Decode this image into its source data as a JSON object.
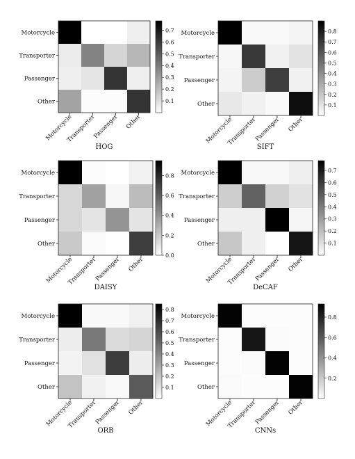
{
  "chart_data": [
    {
      "type": "heatmap",
      "title": "HOG",
      "rows": [
        "Motorcycle",
        "Transporter",
        "Passenger",
        "Other"
      ],
      "cols": [
        "Motorcycle",
        "Transporter",
        "Passenger",
        "Other"
      ],
      "values": [
        [
          0.78,
          0.0,
          0.0,
          0.05
        ],
        [
          0.06,
          0.38,
          0.13,
          0.22
        ],
        [
          0.05,
          0.08,
          0.62,
          0.05
        ],
        [
          0.28,
          0.01,
          0.01,
          0.62
        ]
      ],
      "colorbar_ticks": [
        0.1,
        0.2,
        0.3,
        0.4,
        0.5,
        0.6,
        0.7
      ],
      "vmin": 0.0,
      "vmax": 0.78
    },
    {
      "type": "heatmap",
      "title": "SIFT",
      "rows": [
        "Motorcycle",
        "Transporter",
        "Passenger",
        "Other"
      ],
      "cols": [
        "Motorcycle",
        "Transporter",
        "Passenger",
        "Other"
      ],
      "values": [
        [
          0.9,
          0.02,
          0.02,
          0.04
        ],
        [
          0.03,
          0.7,
          0.05,
          0.1
        ],
        [
          0.04,
          0.18,
          0.68,
          0.05
        ],
        [
          0.08,
          0.05,
          0.02,
          0.85
        ]
      ],
      "colorbar_ticks": [
        0.1,
        0.2,
        0.3,
        0.4,
        0.5,
        0.6,
        0.7,
        0.8
      ],
      "vmin": 0.0,
      "vmax": 0.9
    },
    {
      "type": "heatmap",
      "title": "DAISY",
      "rows": [
        "Motorcycle",
        "Transporter",
        "Passenger",
        "Other"
      ],
      "cols": [
        "Motorcycle",
        "Transporter",
        "Passenger",
        "Other"
      ],
      "values": [
        [
          0.95,
          0.01,
          0.0,
          0.05
        ],
        [
          0.15,
          0.35,
          0.03,
          0.25
        ],
        [
          0.15,
          0.1,
          0.4,
          0.1
        ],
        [
          0.2,
          0.02,
          0.0,
          0.72
        ]
      ],
      "colorbar_ticks": [
        0.0,
        0.2,
        0.4,
        0.6,
        0.8
      ],
      "vmin": 0.0,
      "vmax": 0.95
    },
    {
      "type": "heatmap",
      "title": "DeCAF",
      "rows": [
        "Motorcycle",
        "Transporter",
        "Passenger",
        "Other"
      ],
      "cols": [
        "Motorcycle",
        "Transporter",
        "Passenger",
        "Other"
      ],
      "values": [
        [
          0.78,
          0.02,
          0.02,
          0.05
        ],
        [
          0.15,
          0.48,
          0.14,
          0.09
        ],
        [
          0.05,
          0.05,
          0.78,
          0.03
        ],
        [
          0.17,
          0.05,
          0.0,
          0.72
        ]
      ],
      "colorbar_ticks": [
        0.1,
        0.2,
        0.3,
        0.4,
        0.5,
        0.6,
        0.7
      ],
      "vmin": 0.0,
      "vmax": 0.78
    },
    {
      "type": "heatmap",
      "title": "ORB",
      "rows": [
        "Motorcycle",
        "Transporter",
        "Passenger",
        "Other"
      ],
      "cols": [
        "Motorcycle",
        "Transporter",
        "Passenger",
        "Other"
      ],
      "values": [
        [
          0.85,
          0.02,
          0.02,
          0.05
        ],
        [
          0.06,
          0.45,
          0.12,
          0.14
        ],
        [
          0.04,
          0.1,
          0.65,
          0.06
        ],
        [
          0.2,
          0.05,
          0.02,
          0.55
        ]
      ],
      "colorbar_ticks": [
        0.1,
        0.2,
        0.3,
        0.4,
        0.5,
        0.6,
        0.7,
        0.8
      ],
      "vmin": 0.0,
      "vmax": 0.85
    },
    {
      "type": "heatmap",
      "title": "CNNs",
      "rows": [
        "Motorcycle",
        "Transporter",
        "Passenger",
        "Other"
      ],
      "cols": [
        "Motorcycle",
        "Transporter",
        "Passenger",
        "Other"
      ],
      "values": [
        [
          0.92,
          0.01,
          0.01,
          0.01
        ],
        [
          0.01,
          0.85,
          0.02,
          0.01
        ],
        [
          0.01,
          0.02,
          0.92,
          0.01
        ],
        [
          0.02,
          0.01,
          0.01,
          0.92
        ]
      ],
      "colorbar_ticks": [
        0.2,
        0.4,
        0.6,
        0.8
      ],
      "vmin": 0.0,
      "vmax": 0.93
    }
  ]
}
